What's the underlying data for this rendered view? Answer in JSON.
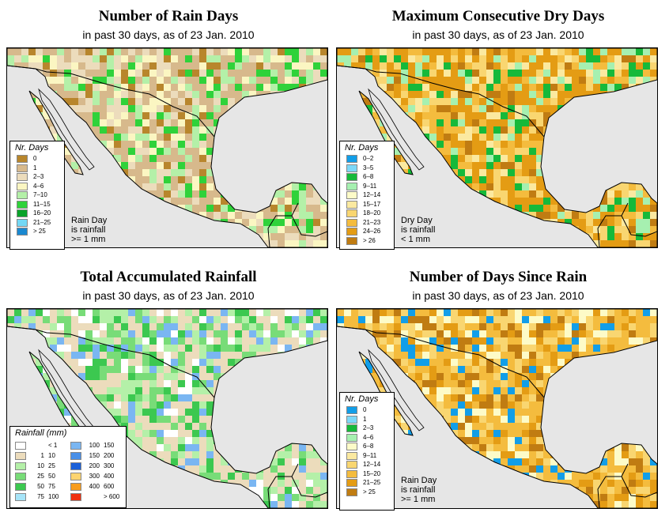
{
  "colors": {
    "ocean": "#e6e6e6",
    "border": "#000000"
  },
  "panels": [
    {
      "id": "rain-days",
      "title": "Number of Rain Days",
      "subtitle": "in past 30 days, as of  23 Jan. 2010",
      "legend_title": "Nr. Days",
      "legend": [
        {
          "label": "0",
          "color": "#b8862c"
        },
        {
          "label": "1",
          "color": "#d7b98c"
        },
        {
          "label": "2–3",
          "color": "#ecdcbc"
        },
        {
          "label": "4–6",
          "color": "#fbf6c2"
        },
        {
          "label": "7–10",
          "color": "#b4f0a8"
        },
        {
          "label": "11–15",
          "color": "#2fd23a"
        },
        {
          "label": "16–20",
          "color": "#09a32a"
        },
        {
          "label": "21–25",
          "color": "#73d8f5"
        },
        {
          "label": "> 25",
          "color": "#1a88d0"
        }
      ],
      "note": [
        "Rain Day",
        "is rainfall",
        ">= 1 mm"
      ],
      "palette": [
        "#d7b98c",
        "#ecdcbc",
        "#fbf6c2",
        "#b4f0a8",
        "#2fd23a",
        "#b8862c"
      ]
    },
    {
      "id": "dry-days",
      "title": "Maximum Consecutive Dry Days",
      "subtitle": "in past 30 days, as of  23 Jan. 2010",
      "legend_title": "Nr. Days",
      "legend": [
        {
          "label": "0–2",
          "color": "#129ee8"
        },
        {
          "label": "3–5",
          "color": "#7dd8f8"
        },
        {
          "label": "6–8",
          "color": "#16b93a"
        },
        {
          "label": "9–11",
          "color": "#a6f0b0"
        },
        {
          "label": "12–14",
          "color": "#fdfbc8"
        },
        {
          "label": "15–17",
          "color": "#fbe9a0"
        },
        {
          "label": "18–20",
          "color": "#f9d671"
        },
        {
          "label": "21–23",
          "color": "#f4bc3e"
        },
        {
          "label": "24–26",
          "color": "#e49c14"
        },
        {
          "label": "> 26",
          "color": "#c07c12"
        }
      ],
      "note": [
        "Dry Day",
        "is rainfall",
        "< 1 mm"
      ],
      "palette": [
        "#e49c14",
        "#f4bc3e",
        "#f9d671",
        "#fbe9a0",
        "#a6f0b0",
        "#16b93a",
        "#c07c12"
      ]
    },
    {
      "id": "rainfall",
      "title": "Total Accumulated Rainfall",
      "subtitle": "in past 30 days, as of  23 Jan. 2010",
      "legend_title": "Rainfall (mm)",
      "legend_left": [
        {
          "a": "",
          "b": "< 1",
          "color": "#ffffff"
        },
        {
          "a": "1",
          "b": "10",
          "color": "#ecdcbc"
        },
        {
          "a": "10",
          "b": "25",
          "color": "#b4f0a8"
        },
        {
          "a": "25",
          "b": "50",
          "color": "#78dc78"
        },
        {
          "a": "50",
          "b": "75",
          "color": "#3cc850"
        },
        {
          "a": "75",
          "b": "100",
          "color": "#a6e4f8"
        }
      ],
      "legend_right": [
        {
          "a": "100",
          "b": "150",
          "color": "#7ab6f2"
        },
        {
          "a": "150",
          "b": "200",
          "color": "#4a90e8"
        },
        {
          "a": "200",
          "b": "300",
          "color": "#1a60d8"
        },
        {
          "a": "300",
          "b": "400",
          "color": "#fdd470"
        },
        {
          "a": "400",
          "b": "600",
          "color": "#f89c1c"
        },
        {
          "a": "",
          "b": "> 600",
          "color": "#f03010"
        }
      ],
      "palette": [
        "#ecdcbc",
        "#b4f0a8",
        "#78dc78",
        "#ffffff",
        "#3cc850",
        "#7ab6f2"
      ]
    },
    {
      "id": "since-rain",
      "title": "Number of Days Since Rain",
      "subtitle": "in past 30 days, as of  23 Jan. 2010",
      "legend_title": "Nr. Days",
      "legend": [
        {
          "label": "0",
          "color": "#129ee8"
        },
        {
          "label": "1",
          "color": "#7dd8f8"
        },
        {
          "label": "2–3",
          "color": "#16b93a"
        },
        {
          "label": "4–6",
          "color": "#a6f0b0"
        },
        {
          "label": "6–8",
          "color": "#fdfbc8"
        },
        {
          "label": "9–11",
          "color": "#fbe9a0"
        },
        {
          "label": "12–14",
          "color": "#f9d671"
        },
        {
          "label": "15–20",
          "color": "#f4bc3e"
        },
        {
          "label": "21–25",
          "color": "#e49c14"
        },
        {
          "label": "> 25",
          "color": "#c07c12"
        }
      ],
      "note": [
        "Rain Day",
        "is rainfall",
        ">= 1 mm"
      ],
      "palette": [
        "#f4bc3e",
        "#f9d671",
        "#fdfbc8",
        "#e49c14",
        "#129ee8",
        "#c07c12"
      ]
    }
  ]
}
